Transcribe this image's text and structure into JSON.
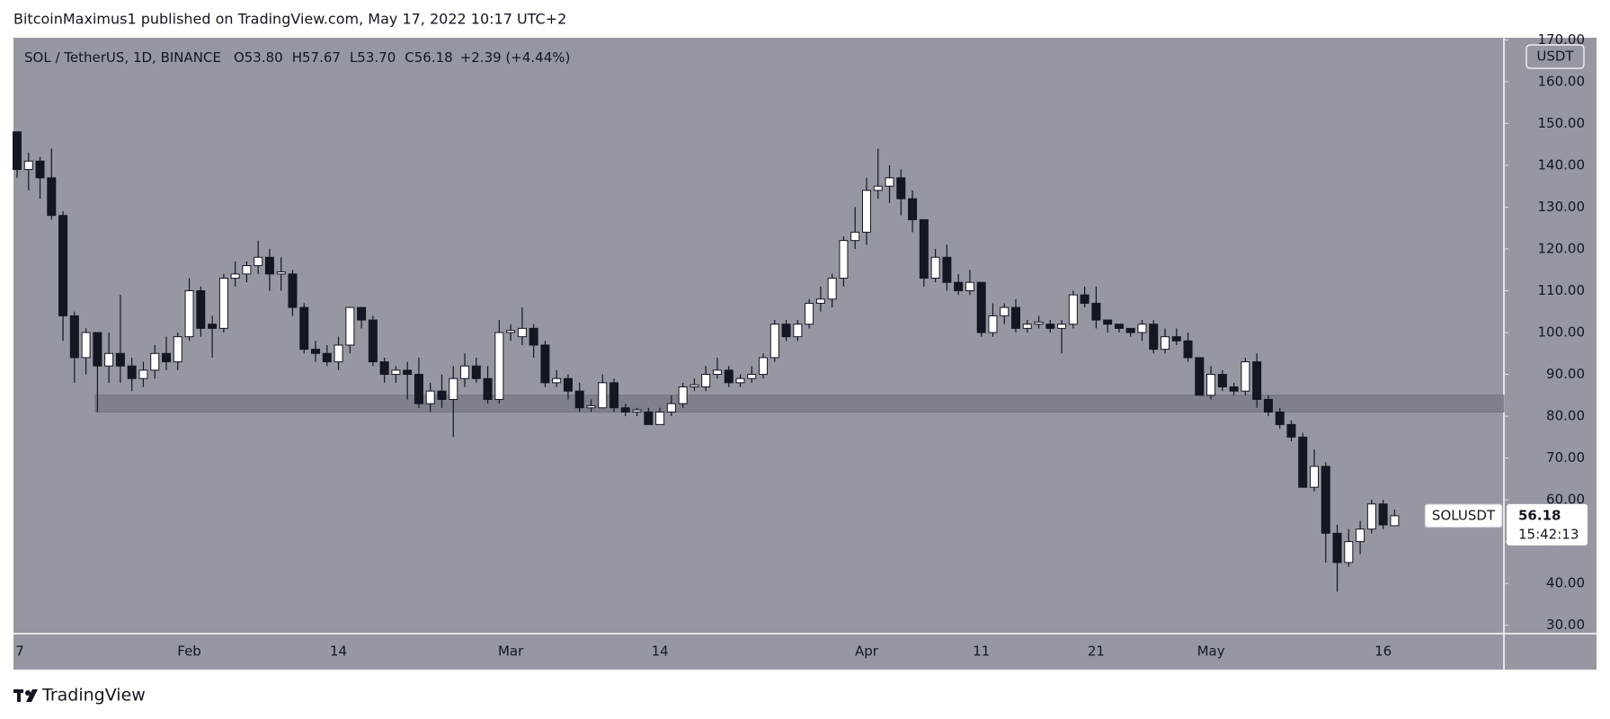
{
  "header": "BitcoinMaximus1 published on TradingView.com, May 17, 2022 10:17 UTC+2",
  "footer": "TradingView",
  "chart_data": {
    "type": "candlestick",
    "legend": {
      "symbol": "SOL / TetherUS, 1D, BINANCE",
      "fields": [
        {
          "key": "O",
          "value": "53.80"
        },
        {
          "key": "H",
          "value": "57.67"
        },
        {
          "key": "L",
          "value": "53.70"
        },
        {
          "key": "C",
          "value": "56.18"
        }
      ],
      "change": "+2.39 (+4.44%)"
    },
    "currency": "USDT",
    "price_label": {
      "name": "SOLUSDT",
      "value": "56.18",
      "countdown": "15:42:13"
    },
    "background": "#9598a1",
    "up_color": "#ffffff",
    "down_color": "#131722",
    "zone": {
      "ylim": [
        81,
        85
      ],
      "color": "#7b7e88"
    },
    "categories": [
      "7",
      null,
      null,
      null,
      null,
      null,
      null,
      null,
      null,
      null,
      null,
      null,
      null,
      null,
      null,
      "Feb",
      null,
      null,
      null,
      null,
      null,
      null,
      null,
      null,
      null,
      null,
      null,
      null,
      "14",
      null,
      null,
      null,
      null,
      null,
      null,
      null,
      null,
      null,
      null,
      null,
      null,
      null,
      null,
      "Mar",
      null,
      null,
      null,
      null,
      null,
      null,
      null,
      null,
      null,
      null,
      null,
      null,
      "14",
      null,
      null,
      null,
      null,
      null,
      null,
      null,
      null,
      null,
      null,
      null,
      null,
      null,
      null,
      null,
      null,
      null,
      "Apr",
      null,
      null,
      null,
      null,
      null,
      null,
      null,
      null,
      null,
      "11",
      null,
      null,
      null,
      null,
      null,
      null,
      null,
      null,
      null,
      "21",
      null,
      null,
      null,
      null,
      null,
      null,
      null,
      null,
      null,
      "May",
      null,
      null,
      null,
      null,
      null,
      null,
      null,
      null,
      null,
      null,
      null,
      null,
      null,
      null,
      "16",
      null
    ],
    "series": {
      "open": [
        148,
        139,
        141,
        137,
        128,
        104,
        94,
        100,
        92,
        95,
        92,
        89,
        91,
        95,
        93,
        99,
        110,
        102,
        101,
        113,
        114,
        116,
        118,
        114,
        114,
        106,
        96,
        95,
        93,
        97,
        106,
        103,
        93,
        90,
        91,
        90,
        83,
        86,
        84,
        89,
        92,
        89,
        84,
        100,
        99,
        101,
        97,
        88,
        89,
        86,
        82,
        82,
        88,
        82,
        81,
        81,
        78,
        81,
        83,
        87,
        87,
        90,
        91,
        88,
        89,
        90,
        94,
        102,
        99,
        102,
        107,
        108,
        113,
        122,
        124,
        134,
        135,
        137,
        132,
        127,
        113,
        118,
        112,
        110,
        112,
        100,
        104,
        106,
        101,
        102,
        102,
        101,
        102,
        109,
        107,
        103,
        102,
        101,
        100,
        102,
        96,
        99,
        98,
        94,
        85,
        90,
        87,
        86,
        93,
        84,
        81,
        78,
        75,
        63,
        68,
        52,
        45,
        50,
        53,
        59,
        53.8
      ],
      "high": [
        148,
        143,
        142,
        144,
        129,
        105,
        101,
        100,
        100,
        109,
        94,
        93,
        97,
        99,
        100,
        113,
        111,
        104,
        114,
        117,
        117,
        122,
        120,
        118,
        115,
        107,
        98,
        97,
        99,
        106,
        106,
        104,
        94,
        92,
        93,
        94,
        88,
        90,
        92,
        95,
        94,
        92,
        103,
        102,
        106,
        102,
        98,
        91,
        90,
        88,
        84,
        90,
        89,
        83,
        82,
        82,
        82,
        85,
        88,
        89,
        92,
        94,
        92,
        90,
        92,
        95,
        103,
        103,
        103,
        108,
        111,
        114,
        123,
        130,
        137,
        144,
        140,
        139,
        134,
        127,
        120,
        121,
        114,
        115,
        112,
        107,
        107,
        108,
        103,
        104,
        103,
        103,
        110,
        111,
        111,
        103,
        102,
        101,
        103,
        103,
        101,
        101,
        100,
        94,
        92,
        91,
        88,
        94,
        95,
        85,
        82,
        79,
        76,
        72,
        69,
        54,
        53,
        55,
        60,
        60,
        57.67
      ],
      "low": [
        137,
        134,
        132,
        127,
        98,
        88,
        90,
        81,
        88,
        88,
        86,
        87,
        89,
        91,
        91,
        98,
        99,
        94,
        100,
        111,
        112,
        114,
        110,
        110,
        104,
        95,
        93,
        92,
        91,
        95,
        101,
        92,
        88,
        88,
        84,
        82,
        81,
        82,
        75,
        87,
        88,
        83,
        83,
        98,
        97,
        94,
        87,
        87,
        84,
        81,
        81,
        82,
        81,
        80,
        80,
        78,
        78,
        80,
        82,
        86,
        86,
        89,
        87,
        87,
        88,
        89,
        93,
        98,
        98,
        101,
        105,
        106,
        111,
        120,
        121,
        132,
        131,
        128,
        124,
        111,
        112,
        110,
        109,
        109,
        99,
        99,
        102,
        100,
        100,
        101,
        100,
        95,
        101,
        106,
        101,
        100,
        100,
        99,
        98,
        95,
        95,
        97,
        93,
        85,
        84,
        86,
        85,
        85,
        82,
        80,
        77,
        74,
        63,
        62,
        45,
        38,
        44,
        47,
        52,
        53,
        53.7
      ],
      "close": [
        139,
        141,
        137,
        128,
        104,
        94,
        100,
        92,
        95,
        92,
        89,
        91,
        95,
        93,
        99,
        110,
        101,
        101,
        113,
        114,
        116,
        118,
        114,
        114.5,
        106,
        96,
        95,
        93,
        97,
        106,
        103,
        93,
        90,
        91,
        90,
        83,
        86,
        84,
        89,
        92,
        89,
        84,
        100,
        100.5,
        101,
        97,
        88,
        89,
        86,
        82,
        82.5,
        88,
        82,
        81,
        81.5,
        78,
        81,
        83,
        87,
        87.5,
        90,
        91,
        88,
        89,
        90,
        94,
        102,
        99,
        102,
        107,
        108,
        113,
        122,
        124,
        134,
        135,
        137,
        132,
        127,
        113,
        118,
        112,
        110,
        112,
        100,
        104,
        106,
        101,
        102,
        102.5,
        101,
        102,
        109,
        107,
        103,
        102,
        101,
        100,
        102,
        96,
        99,
        98,
        94,
        85,
        90,
        87,
        86,
        93,
        84,
        81,
        78,
        75,
        63,
        68,
        52,
        45,
        50,
        53,
        59,
        54,
        56.18
      ]
    },
    "ylim": [
      28,
      170.5
    ],
    "yticks": [
      {
        "value": 30,
        "label": "30.00"
      },
      {
        "value": 40,
        "label": "40.00"
      },
      {
        "value": 50,
        "label": "50.00"
      },
      {
        "value": 60,
        "label": "60.00"
      },
      {
        "value": 70,
        "label": "70.00"
      },
      {
        "value": 80,
        "label": "80.00"
      },
      {
        "value": 90,
        "label": "90.00"
      },
      {
        "value": 100,
        "label": "100.00"
      },
      {
        "value": 110,
        "label": "110.00"
      },
      {
        "value": 120,
        "label": "120.00"
      },
      {
        "value": 130,
        "label": "130.00"
      },
      {
        "value": 140,
        "label": "140.00"
      },
      {
        "value": 150,
        "label": "150.00"
      },
      {
        "value": 160,
        "label": "160.00"
      },
      {
        "value": 170,
        "label": "170.00"
      }
    ],
    "grid": false
  }
}
